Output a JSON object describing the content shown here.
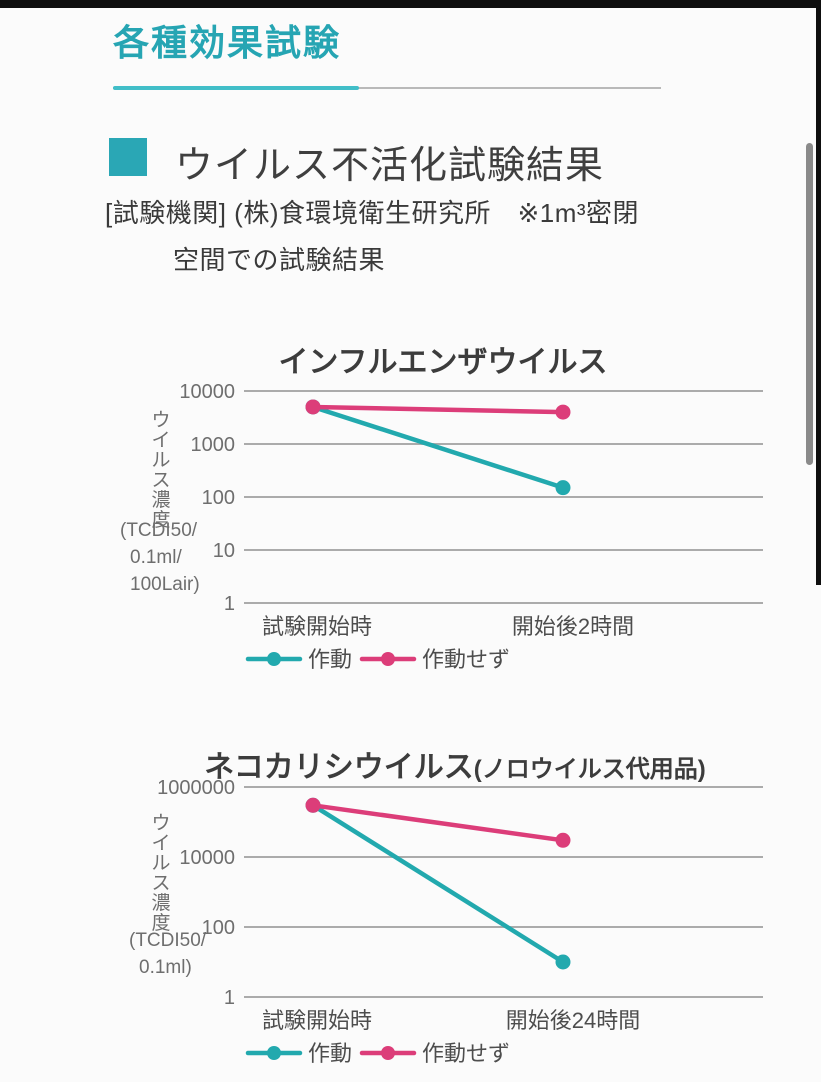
{
  "page": {
    "title": "各種効果試験",
    "section_heading": "ウイルス不活化試験結果",
    "note_line1": "[試験機関] (株)食環境衛生研究所　※1m³密閉",
    "note_line2": "空間での試験結果"
  },
  "colors": {
    "accent_teal": "#26a5b3",
    "series_teal": "#22a9ae",
    "series_pink": "#dc3d79",
    "grid": "#ababab",
    "title_text": "#3c3c3c",
    "tick_text": "#6e6e6e",
    "axis_text": "#4d4d4d",
    "scrollbar": "#8a8a8a"
  },
  "chart_data": [
    {
      "type": "line",
      "title": "インフルエンザウイルス",
      "title_suffix": "",
      "categories": [
        "試験開始時",
        "開始後2時間"
      ],
      "series": [
        {
          "name": "作動",
          "color": "#22a9ae",
          "values": [
            5000,
            150
          ]
        },
        {
          "name": "作動せず",
          "color": "#dc3d79",
          "values": [
            5000,
            4000
          ]
        }
      ],
      "ylabel_vertical": "ウイルス濃度",
      "ylabel_unit_lines": [
        "(TCDI50/",
        "0.1ml/",
        "100Lair)"
      ],
      "yticks": [
        10000,
        1000,
        100,
        10,
        1
      ],
      "yscale": "log",
      "ylim": [
        1,
        10000
      ],
      "grid": true,
      "legend_position": "bottom"
    },
    {
      "type": "line",
      "title": "ネコカリシウイルス",
      "title_suffix": "(ノロウイルス代用品)",
      "categories": [
        "試験開始時",
        "開始後24時間"
      ],
      "series": [
        {
          "name": "作動",
          "color": "#22a9ae",
          "values": [
            300000,
            10
          ]
        },
        {
          "name": "作動せず",
          "color": "#dc3d79",
          "values": [
            300000,
            30000
          ]
        }
      ],
      "ylabel_vertical": "ウイルス濃度",
      "ylabel_unit_lines": [
        "(TCDI50/",
        "0.1ml)"
      ],
      "yticks": [
        1000000,
        10000,
        100,
        1
      ],
      "yscale": "log",
      "ylim": [
        1,
        1000000
      ],
      "grid": true,
      "legend_position": "bottom"
    }
  ]
}
